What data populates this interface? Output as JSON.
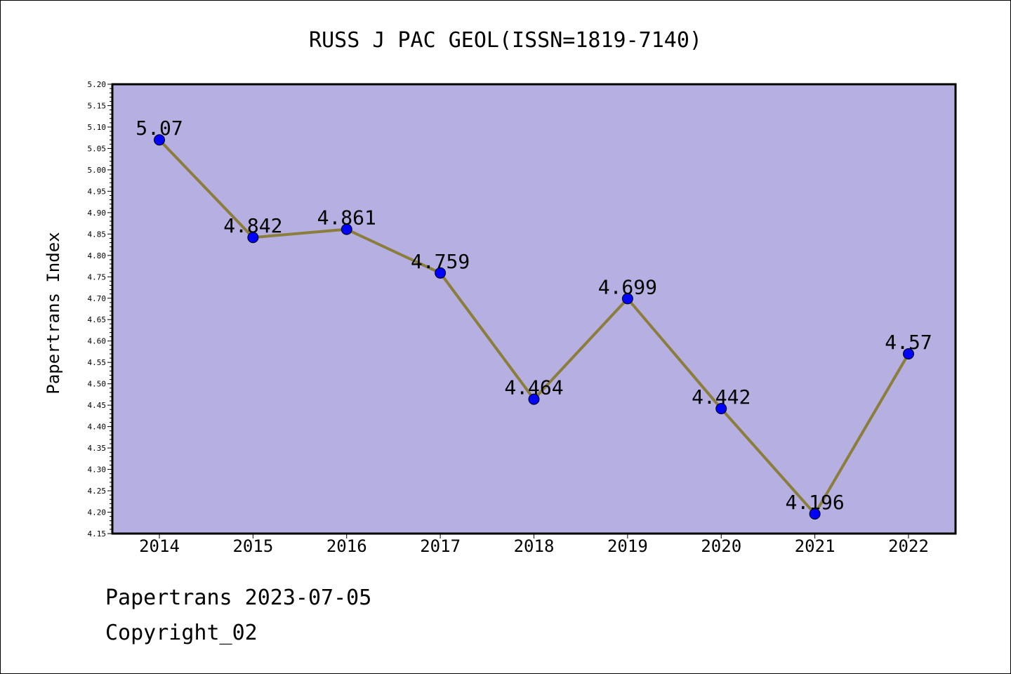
{
  "chart_data": {
    "type": "line",
    "title": "RUSS J PAC GEOL(ISSN=1819-7140)",
    "xlabel": "",
    "ylabel": "Papertrans Index",
    "categories": [
      "2014",
      "2015",
      "2016",
      "2017",
      "2018",
      "2019",
      "2020",
      "2021",
      "2022"
    ],
    "values": [
      5.07,
      4.842,
      4.861,
      4.759,
      4.464,
      4.699,
      4.442,
      4.196,
      4.57
    ],
    "data_labels": [
      "5.07",
      "4.842",
      "4.861",
      "4.759",
      "4.464",
      "4.699",
      "4.442",
      "4.196",
      "4.57"
    ],
    "ylim": [
      4.15,
      5.2
    ],
    "yticks": [
      "4.15",
      "4.20",
      "4.25",
      "4.30",
      "4.35",
      "4.40",
      "4.45",
      "4.50",
      "4.55",
      "4.60",
      "4.65",
      "4.70",
      "4.75",
      "4.80",
      "4.85",
      "4.90",
      "4.95",
      "5.00",
      "5.05",
      "5.10",
      "5.15",
      "5.20"
    ],
    "grid": false,
    "colors": {
      "plot_background": "#b5afe2",
      "line": "#8b7d3a",
      "marker": "#0000ff"
    }
  },
  "footer": {
    "line1": "Papertrans 2023-07-05",
    "line2": "Copyright_02"
  }
}
